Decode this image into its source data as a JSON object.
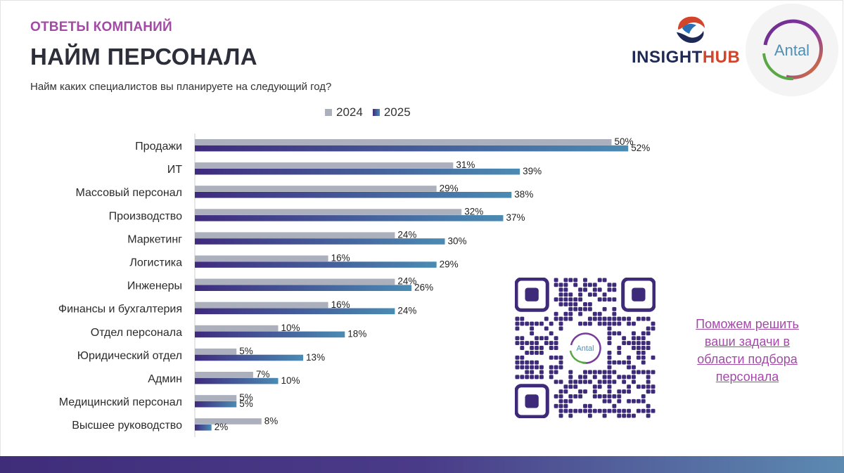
{
  "header": {
    "subtitle": "ОТВЕТЫ КОМПАНИЙ",
    "title": "НАЙМ ПЕРСОНАЛА",
    "question": "Найм каких специалистов вы планируете на следующий год?"
  },
  "brand": {
    "insight_part1": "INSIGHT",
    "insight_part2": "HUB",
    "antal": "Antal",
    "qr_center": "Antal"
  },
  "cta": {
    "text": "Поможем решить ваши задачи в области подбора персонала"
  },
  "colors": {
    "series_2024": "#abb0bc",
    "series_2025_start": "#3f2a7e",
    "series_2025_end": "#4a8bb3",
    "accent": "#a24aa6"
  },
  "chart_data": {
    "type": "bar",
    "orientation": "horizontal",
    "title": "",
    "xlabel": "",
    "ylabel": "",
    "xlim": [
      0,
      55
    ],
    "value_suffix": "%",
    "legend_position": "top-center",
    "categories": [
      "Продажи",
      "ИТ",
      "Массовый персонал",
      "Производство",
      "Маркетинг",
      "Логистика",
      "Инженеры",
      "Финансы и бухгалтерия",
      "Отдел персонала",
      "Юридический отдел",
      "Админ",
      "Медицинский персонал",
      "Высшее руководство"
    ],
    "series": [
      {
        "name": "2024",
        "values": [
          50,
          31,
          29,
          32,
          24,
          16,
          24,
          16,
          10,
          5,
          7,
          5,
          8
        ]
      },
      {
        "name": "2025",
        "values": [
          52,
          39,
          38,
          37,
          30,
          29,
          26,
          24,
          18,
          13,
          10,
          5,
          2
        ]
      }
    ]
  }
}
